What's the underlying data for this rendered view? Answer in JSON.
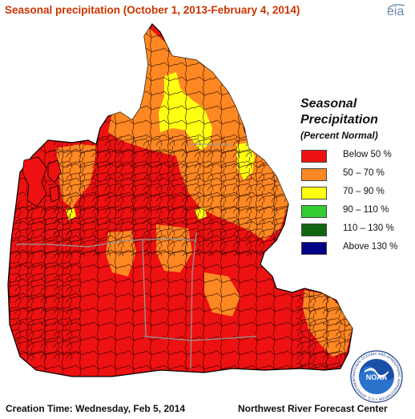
{
  "header": {
    "title": "Seasonal precipitation (October 1, 2013-February 4, 2014)",
    "source_logo": "eia"
  },
  "legend": {
    "title_line1": "Seasonal",
    "title_line2": "Precipitation",
    "subtitle": "(Percent Normal)",
    "items": [
      {
        "label": "Below 50 %",
        "color": "#ee1111"
      },
      {
        "label": "50 – 70 %",
        "color": "#ff8822"
      },
      {
        "label": "70 – 90 %",
        "color": "#ffff11"
      },
      {
        "label": "90 – 110 %",
        "color": "#33cc33"
      },
      {
        "label": "110 – 130 %",
        "color": "#116611"
      },
      {
        "label": "Above 130 %",
        "color": "#000088"
      }
    ]
  },
  "footer": {
    "creation_time": "Creation Time: Wednesday, Feb 5, 2014",
    "center": "Northwest River Forecast Center"
  },
  "seal": {
    "name": "NOAA",
    "ring_text": "NATIONAL OCEANIC AND ATMOSPHERIC ADMINISTRATION • U.S. DEPARTMENT OF COMMERCE •"
  },
  "map_colors": {
    "below_50": "#ee1111",
    "p50_70": "#ff8822",
    "p70_90": "#ffff11",
    "basin_outline": "#1a0000",
    "state_line": "#9a9a9a",
    "coast": "#000000"
  }
}
